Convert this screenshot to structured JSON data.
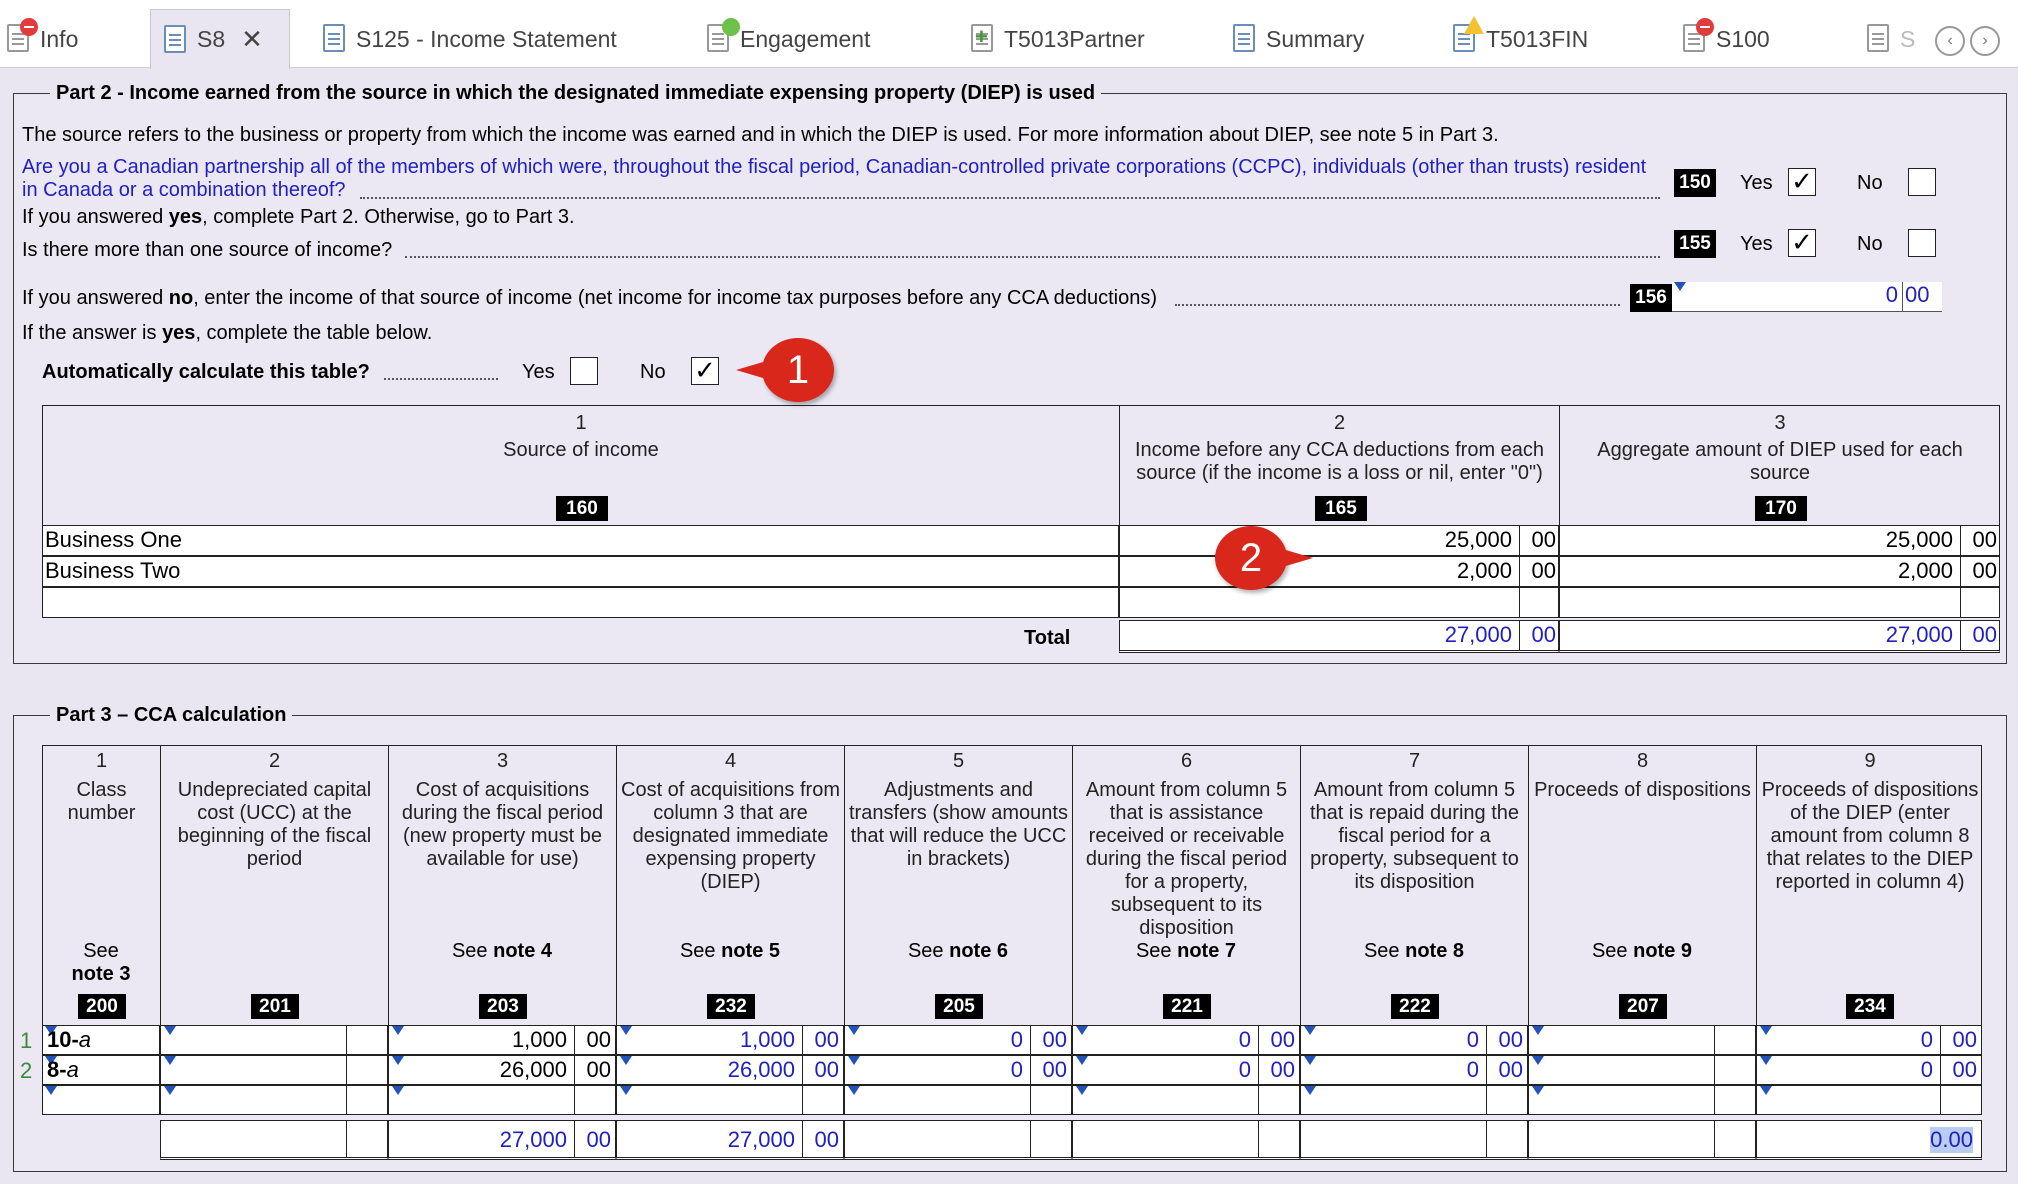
{
  "tabs": [
    {
      "label": "Info",
      "icon": "info-doc-error-icon"
    },
    {
      "label": "S8",
      "icon": "document-icon",
      "active": true,
      "close": "✕"
    },
    {
      "label": "S125 - Income Statement",
      "icon": "document-icon"
    },
    {
      "label": "Engagement",
      "icon": "engagement-doc-icon"
    },
    {
      "label": "T5013Partner",
      "icon": "add-document-icon"
    },
    {
      "label": "Summary",
      "icon": "summary-icon"
    },
    {
      "label": "T5013FIN",
      "icon": "warning-document-icon"
    },
    {
      "label": "S100",
      "icon": "error-document-icon"
    },
    {
      "label": "S",
      "icon": "document-icon"
    }
  ],
  "part2": {
    "legend": "Part 2 - Income earned from the source in which the designated immediate expensing property (DIEP) is used",
    "intro": "The source refers to the business or property from which the income was earned and in which the DIEP is used. For more information about DIEP, see note 5 in Part 3.",
    "q150_line1": "Are you a Canadian partnership all of the members of which were, throughout the fiscal period, Canadian-controlled private corporations (CCPC), individuals (other than trusts) resident",
    "q150_line2": "in Canada or a combination thereof?",
    "q150_code": "150",
    "yes": "Yes",
    "no": "No",
    "q150_yes_checked": "✓",
    "if_yes_prefix": "If you answered ",
    "if_yes_bold": "yes",
    "if_yes_suffix": ", complete Part 2. Otherwise, go to Part 3.",
    "q155": "Is there more than one source of income?",
    "q155_code": "155",
    "q155_yes_checked": "✓",
    "q156_prefix": "If you answered ",
    "q156_bold": "no",
    "q156_suffix": ", enter the income of that source of income (net income for income tax purposes before any CCA deductions)",
    "q156_code": "156",
    "q156_dollars": "0",
    "q156_cents": "00",
    "ans_yes_prefix": "If the answer is ",
    "ans_yes_bold": "yes",
    "ans_yes_suffix": ", complete the table below.",
    "auto_calc": "Automatically calculate this table?",
    "auto_no_checked": "✓",
    "callout1": "1",
    "callout2": "2",
    "table": {
      "headers": [
        {
          "num": "1",
          "label": "Source of income",
          "code": "160"
        },
        {
          "num": "2",
          "label": "Income before any CCA deductions from each source (if the income is a loss or nil, enter \"0\")",
          "code": "165"
        },
        {
          "num": "3",
          "label": "Aggregate amount of DIEP used for each source",
          "code": "170"
        }
      ],
      "rows": [
        {
          "source": "Business One",
          "income": "25,000",
          "income_c": "00",
          "diep": "25,000",
          "diep_c": "00"
        },
        {
          "source": "Business Two",
          "income": "2,000",
          "income_c": "00",
          "diep": "2,000",
          "diep_c": "00"
        }
      ],
      "total_label": "Total",
      "total_income": "27,000",
      "total_income_c": "00",
      "total_diep": "27,000",
      "total_diep_c": "00"
    }
  },
  "part3": {
    "legend": "Part 3 – CCA calculation",
    "headers": [
      {
        "num": "1",
        "label": "Class number",
        "see": "See",
        "note": "note 3",
        "code": "200"
      },
      {
        "num": "2",
        "label": "Undepreciated capital cost (UCC) at the beginning of the fiscal period",
        "see": "",
        "note": "",
        "code": "201"
      },
      {
        "num": "3",
        "label": "Cost of acquisitions during the fiscal period (new property must be available for use)",
        "see": "See",
        "note": "note 4",
        "code": "203"
      },
      {
        "num": "4",
        "label": "Cost of acquisitions from column 3 that are designated immediate expensing property (DIEP)",
        "see": "See",
        "note": "note 5",
        "code": "232"
      },
      {
        "num": "5",
        "label": "Adjustments and transfers (show amounts that will reduce the UCC in brackets)",
        "see": "See",
        "note": "note 6",
        "code": "205"
      },
      {
        "num": "6",
        "label": "Amount from column 5 that is assistance received or receivable during the fiscal period for a property, subsequent to its disposition",
        "see": "See",
        "note": "note 7",
        "code": "221"
      },
      {
        "num": "7",
        "label": "Amount from column 5 that is repaid during the fiscal period for a property, subsequent to its disposition",
        "see": "See",
        "note": "note 8",
        "code": "222"
      },
      {
        "num": "8",
        "label": "Proceeds of dispositions",
        "see": "See",
        "note": "note 9",
        "code": "207"
      },
      {
        "num": "9",
        "label": "Proceeds of dispositions of the DIEP (enter amount from column 8 that relates to the DIEP reported in column 4)",
        "see": "",
        "note": "",
        "code": "234"
      }
    ],
    "rows": [
      {
        "rownum": "1",
        "class_bold": "10-",
        "class_it": "a",
        "c3": "1,000",
        "c3c": "00",
        "c4": "1,000",
        "c4c": "00",
        "c5": "0",
        "c5c": "00",
        "c6": "0",
        "c6c": "00",
        "c7": "0",
        "c7c": "00",
        "c9": "0",
        "c9c": "00"
      },
      {
        "rownum": "2",
        "class_bold": "8-",
        "class_it": "a",
        "c3": "26,000",
        "c3c": "00",
        "c4": "26,000",
        "c4c": "00",
        "c5": "0",
        "c5c": "00",
        "c6": "0",
        "c6c": "00",
        "c7": "0",
        "c7c": "00",
        "c9": "0",
        "c9c": "00"
      }
    ],
    "totals": {
      "c3": "27,000",
      "c3c": "00",
      "c4": "27,000",
      "c4c": "00",
      "c9": "0.00"
    }
  },
  "colors": {
    "blue_text": "#2020c0",
    "background": "#e9e6f1",
    "callout": "#d9271c"
  }
}
